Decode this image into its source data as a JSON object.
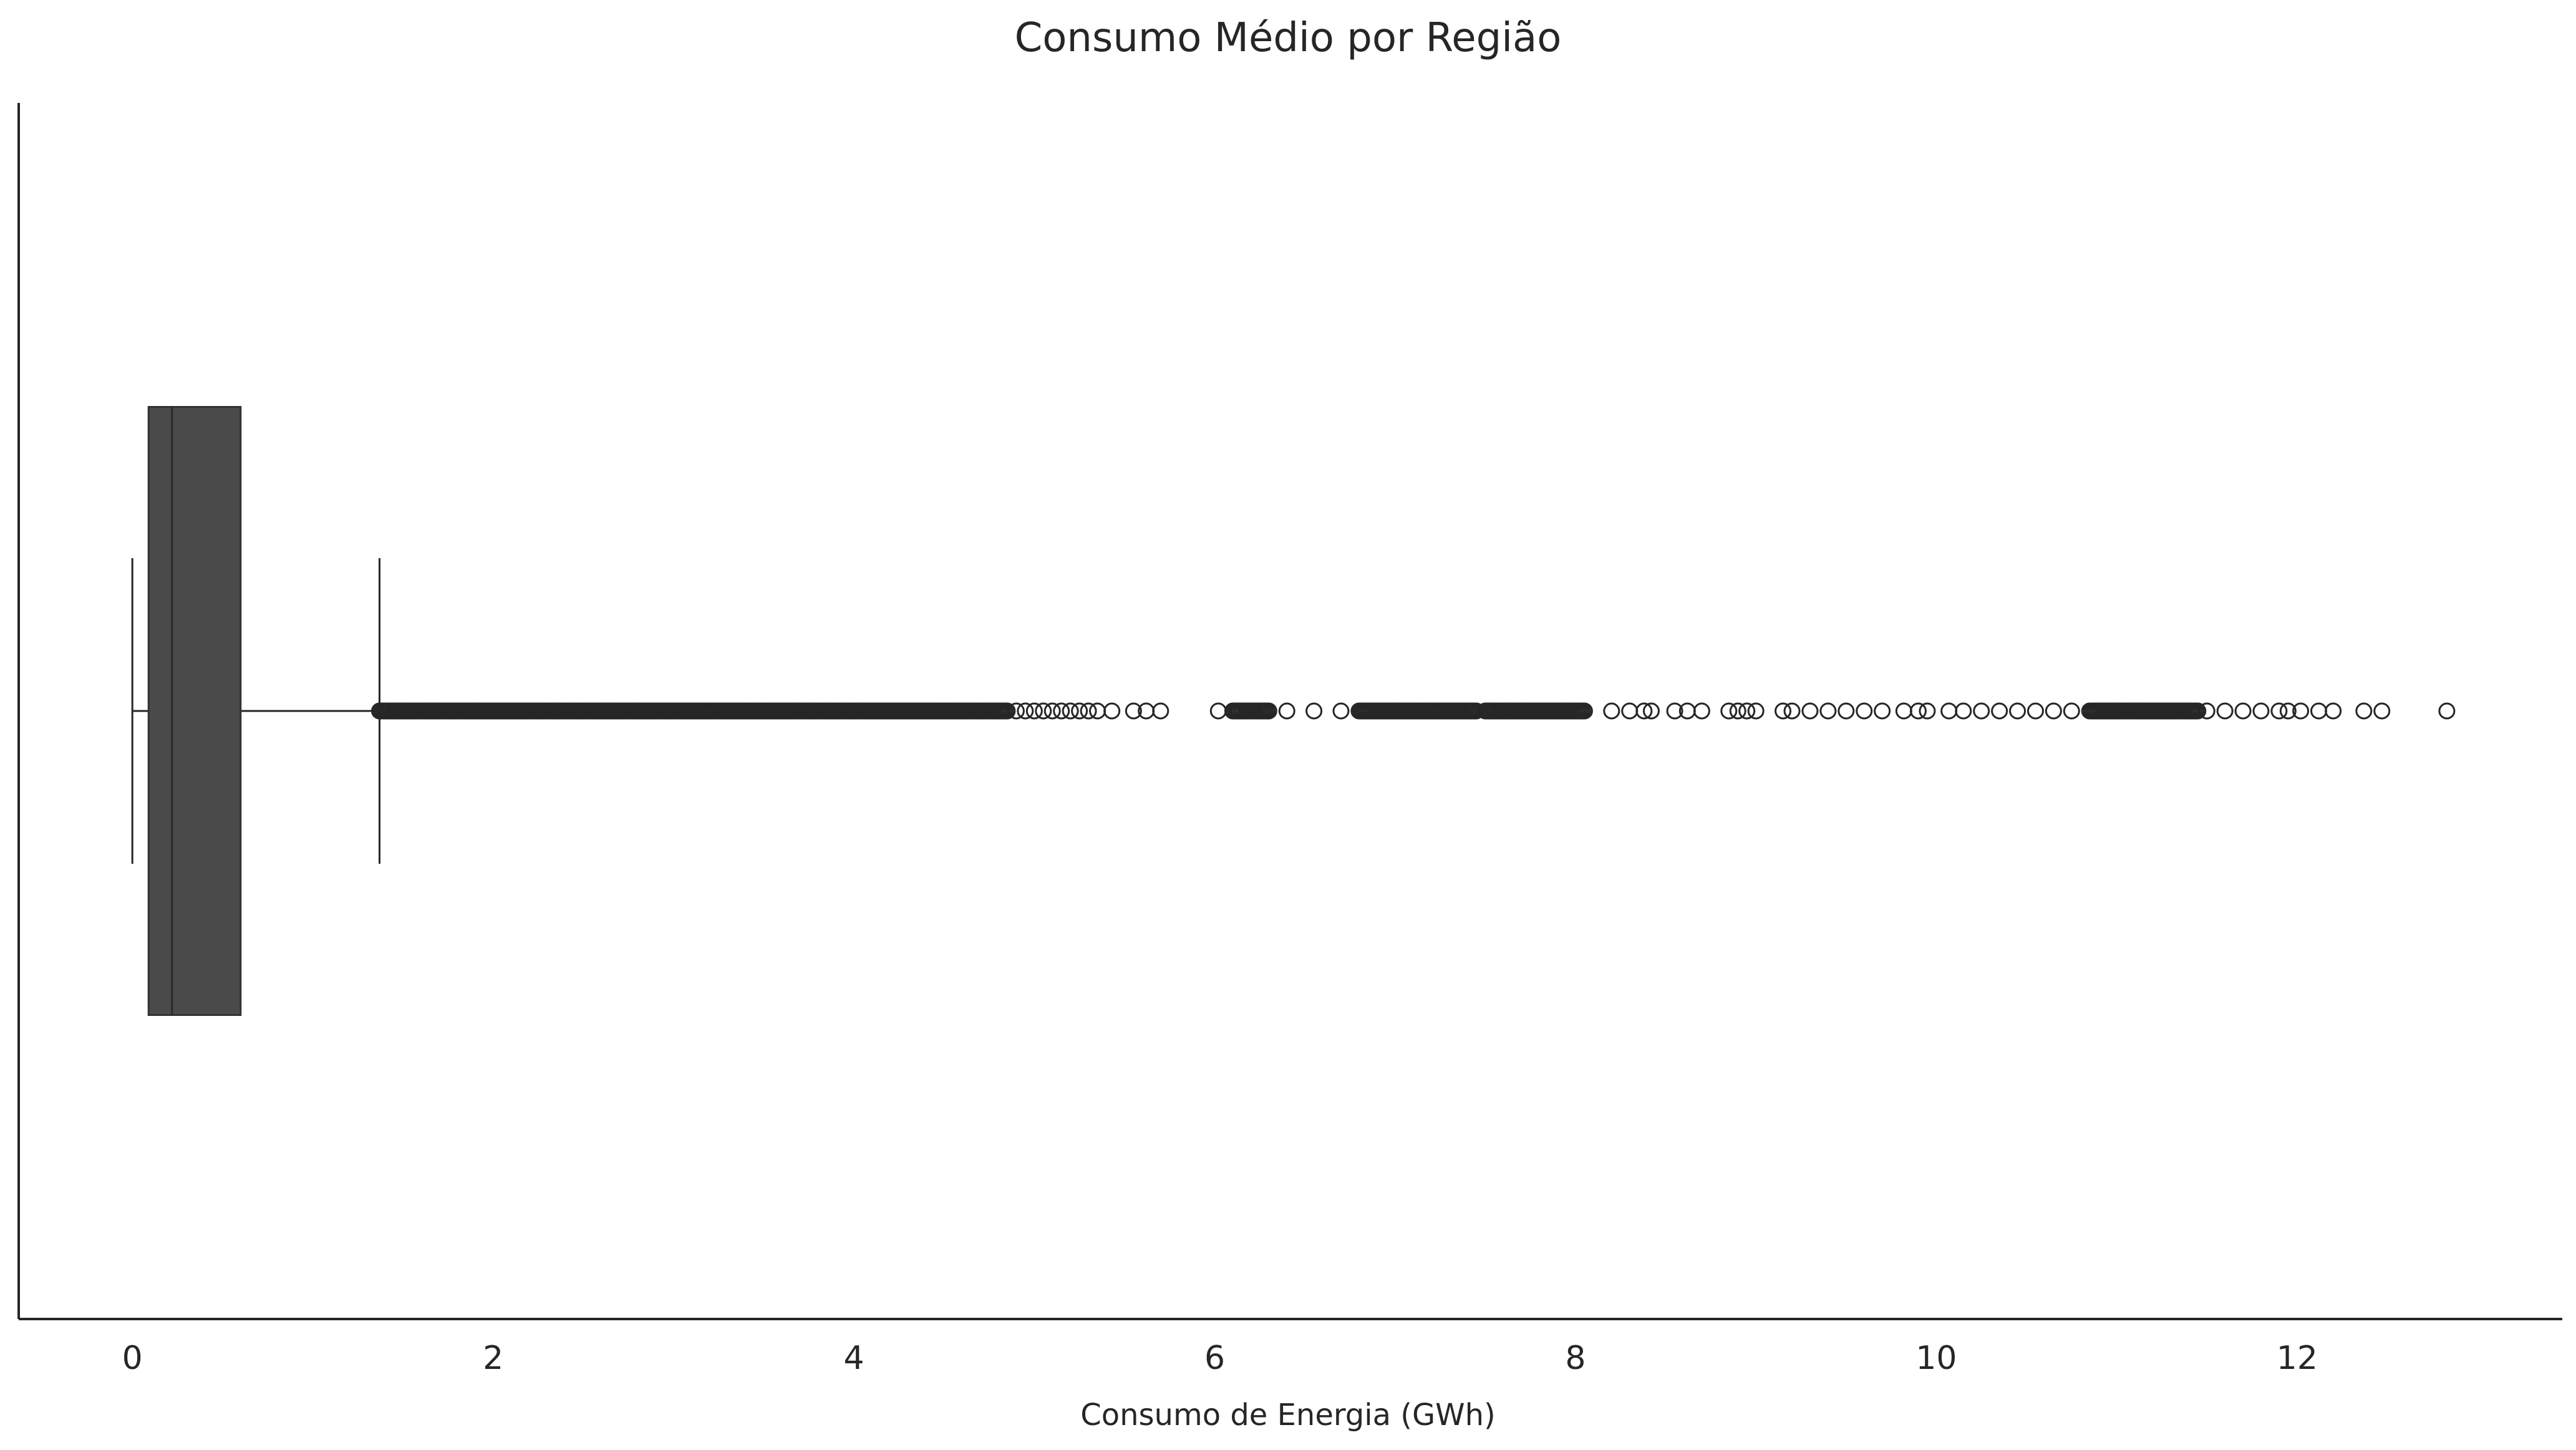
{
  "chart_data": {
    "type": "boxplot",
    "orientation": "horizontal",
    "title": "Consumo Médio por Região",
    "xlabel": "Consumo de Energia (GWh)",
    "ylabel": "",
    "xlim": [
      -0.63,
      13.47
    ],
    "x_ticks": [
      0,
      2,
      4,
      6,
      8,
      10,
      12
    ],
    "x_tick_labels": [
      "0",
      "2",
      "4",
      "6",
      "8",
      "10",
      "12"
    ],
    "grid": false,
    "box_color": "#4a4a4a",
    "line_color": "#262626",
    "box": {
      "whisker_low": 0.0,
      "q1": 0.09,
      "median": 0.22,
      "q3": 0.6,
      "whisker_high": 1.37
    },
    "outlier_ranges": [
      [
        1.37,
        4.85
      ],
      [
        6.1,
        6.3
      ],
      [
        6.8,
        7.45
      ],
      [
        7.5,
        8.05
      ],
      [
        10.85,
        11.45
      ]
    ],
    "outliers": [
      4.9,
      4.95,
      5.0,
      5.05,
      5.1,
      5.15,
      5.2,
      5.25,
      5.3,
      5.35,
      5.43,
      5.55,
      5.62,
      5.7,
      6.02,
      6.13,
      6.4,
      6.55,
      6.7,
      7.55,
      7.62,
      7.7,
      8.2,
      8.3,
      8.38,
      8.42,
      8.55,
      8.62,
      8.7,
      8.85,
      8.9,
      8.95,
      9.0,
      9.15,
      9.2,
      9.3,
      9.4,
      9.5,
      9.6,
      9.7,
      9.82,
      9.9,
      9.95,
      10.07,
      10.15,
      10.25,
      10.35,
      10.45,
      10.55,
      10.65,
      10.75,
      11.5,
      11.6,
      11.7,
      11.8,
      11.9,
      11.95,
      12.02,
      12.12,
      12.2,
      12.37,
      12.47,
      12.83
    ]
  }
}
